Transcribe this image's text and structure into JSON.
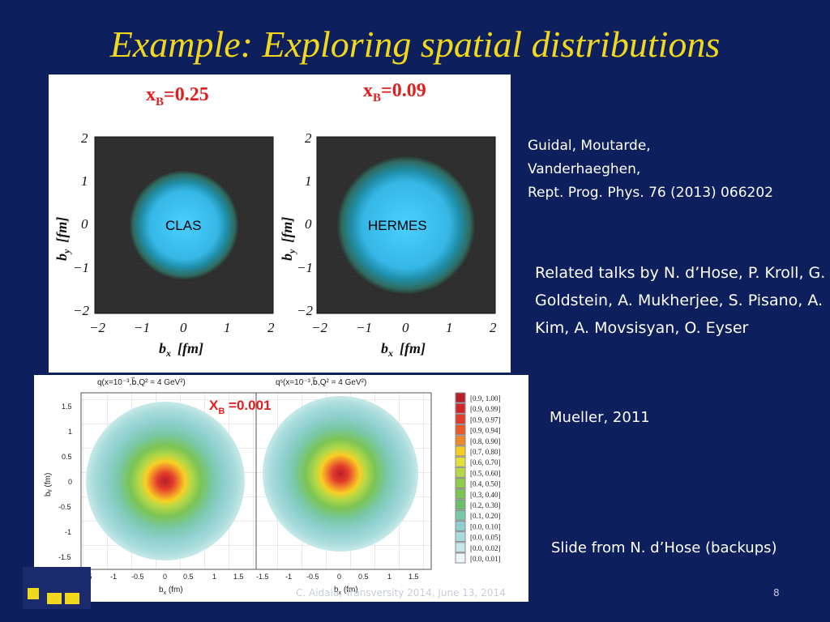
{
  "slide": {
    "title": "Example: Exploring spatial distributions",
    "page_number": "8",
    "footer": "C. Aidala, Transversity 2014, June 13, 2014"
  },
  "top_figure": {
    "left_panel": {
      "xb_label": "x",
      "xb_sub": "B",
      "xb_value": "=0.25",
      "inset_label": "CLAS"
    },
    "right_panel": {
      "xb_label": "x",
      "xb_sub": "B",
      "xb_value": "=0.09",
      "inset_label": "HERMES"
    },
    "axis_x": {
      "name": "b",
      "sub": "x",
      "unit": "[fm]"
    },
    "axis_y": {
      "name": "b",
      "sub": "y",
      "unit": "[fm]"
    },
    "ticks": [
      "−2",
      "−1",
      "0",
      "1",
      "2"
    ],
    "colors": {
      "label_red": "#e11f1f",
      "blob": "#3cc6f0",
      "background": "#2b2b2b"
    }
  },
  "bottom_figure": {
    "left_title": "q(x=10⁻³,b⃗,Q² = 4 GeV²)",
    "right_title": "qˢ(x=10⁻³,b⃗,Q² = 4 GeV²)",
    "xb_label": "X",
    "xb_sub": "B",
    "xb_value": " =0.001",
    "xlabel_name": "b",
    "xlabel_sub": "x",
    "xlabel_unit": " (fm)",
    "ylabel": "bᵧ (fm)",
    "x_ticks": [
      "-1.5",
      "-1",
      "-0.5",
      "0",
      "0.5",
      "1",
      "1.5"
    ],
    "y_ticks": [
      "1.5",
      "1",
      "0.5",
      "0",
      "-0.5",
      "-1",
      "-1.5"
    ],
    "legend": [
      {
        "label": "[0.9, 1.00]",
        "color": "#b81f2a"
      },
      {
        "label": "[0.9, 0.99]",
        "color": "#d3242b"
      },
      {
        "label": "[0.9, 0.97]",
        "color": "#e23a2c"
      },
      {
        "label": "[0.9, 0.94]",
        "color": "#ea5a2a"
      },
      {
        "label": "[0.8, 0.90]",
        "color": "#f2892a"
      },
      {
        "label": "[0.7, 0.80]",
        "color": "#f7cf24"
      },
      {
        "label": "[0.6, 0.70]",
        "color": "#e3e039"
      },
      {
        "label": "[0.5, 0.60]",
        "color": "#b6d846"
      },
      {
        "label": "[0.4, 0.50]",
        "color": "#8fcd4c"
      },
      {
        "label": "[0.3, 0.40]",
        "color": "#7ac455"
      },
      {
        "label": "[0.2, 0.30]",
        "color": "#6cbf6a"
      },
      {
        "label": "[0.1, 0.20]",
        "color": "#79c8a8"
      },
      {
        "label": "[0.0, 0.10]",
        "color": "#8fd0cf"
      },
      {
        "label": "[0.0, 0.05]",
        "color": "#a9dcdc"
      },
      {
        "label": "[0.0, 0.02]",
        "color": "#c9e9e9"
      },
      {
        "label": "[0.0, 0.01]",
        "color": "#eef7f7"
      }
    ]
  },
  "references": {
    "ref1_lines": [
      "Guidal, Moutarde,",
      "Vanderhaeghen,",
      "Rept. Prog. Phys. 76 (2013) 066202"
    ],
    "ref2": "Related talks by N. d’Hose, P. Kroll, G. Goldstein, A. Mukherjee, S. Pisano, A. Kim, A. Movsisyan, O. Eyser",
    "ref3": "Mueller, 2011",
    "ref4": "Slide from N. d’Hose (backups)"
  }
}
